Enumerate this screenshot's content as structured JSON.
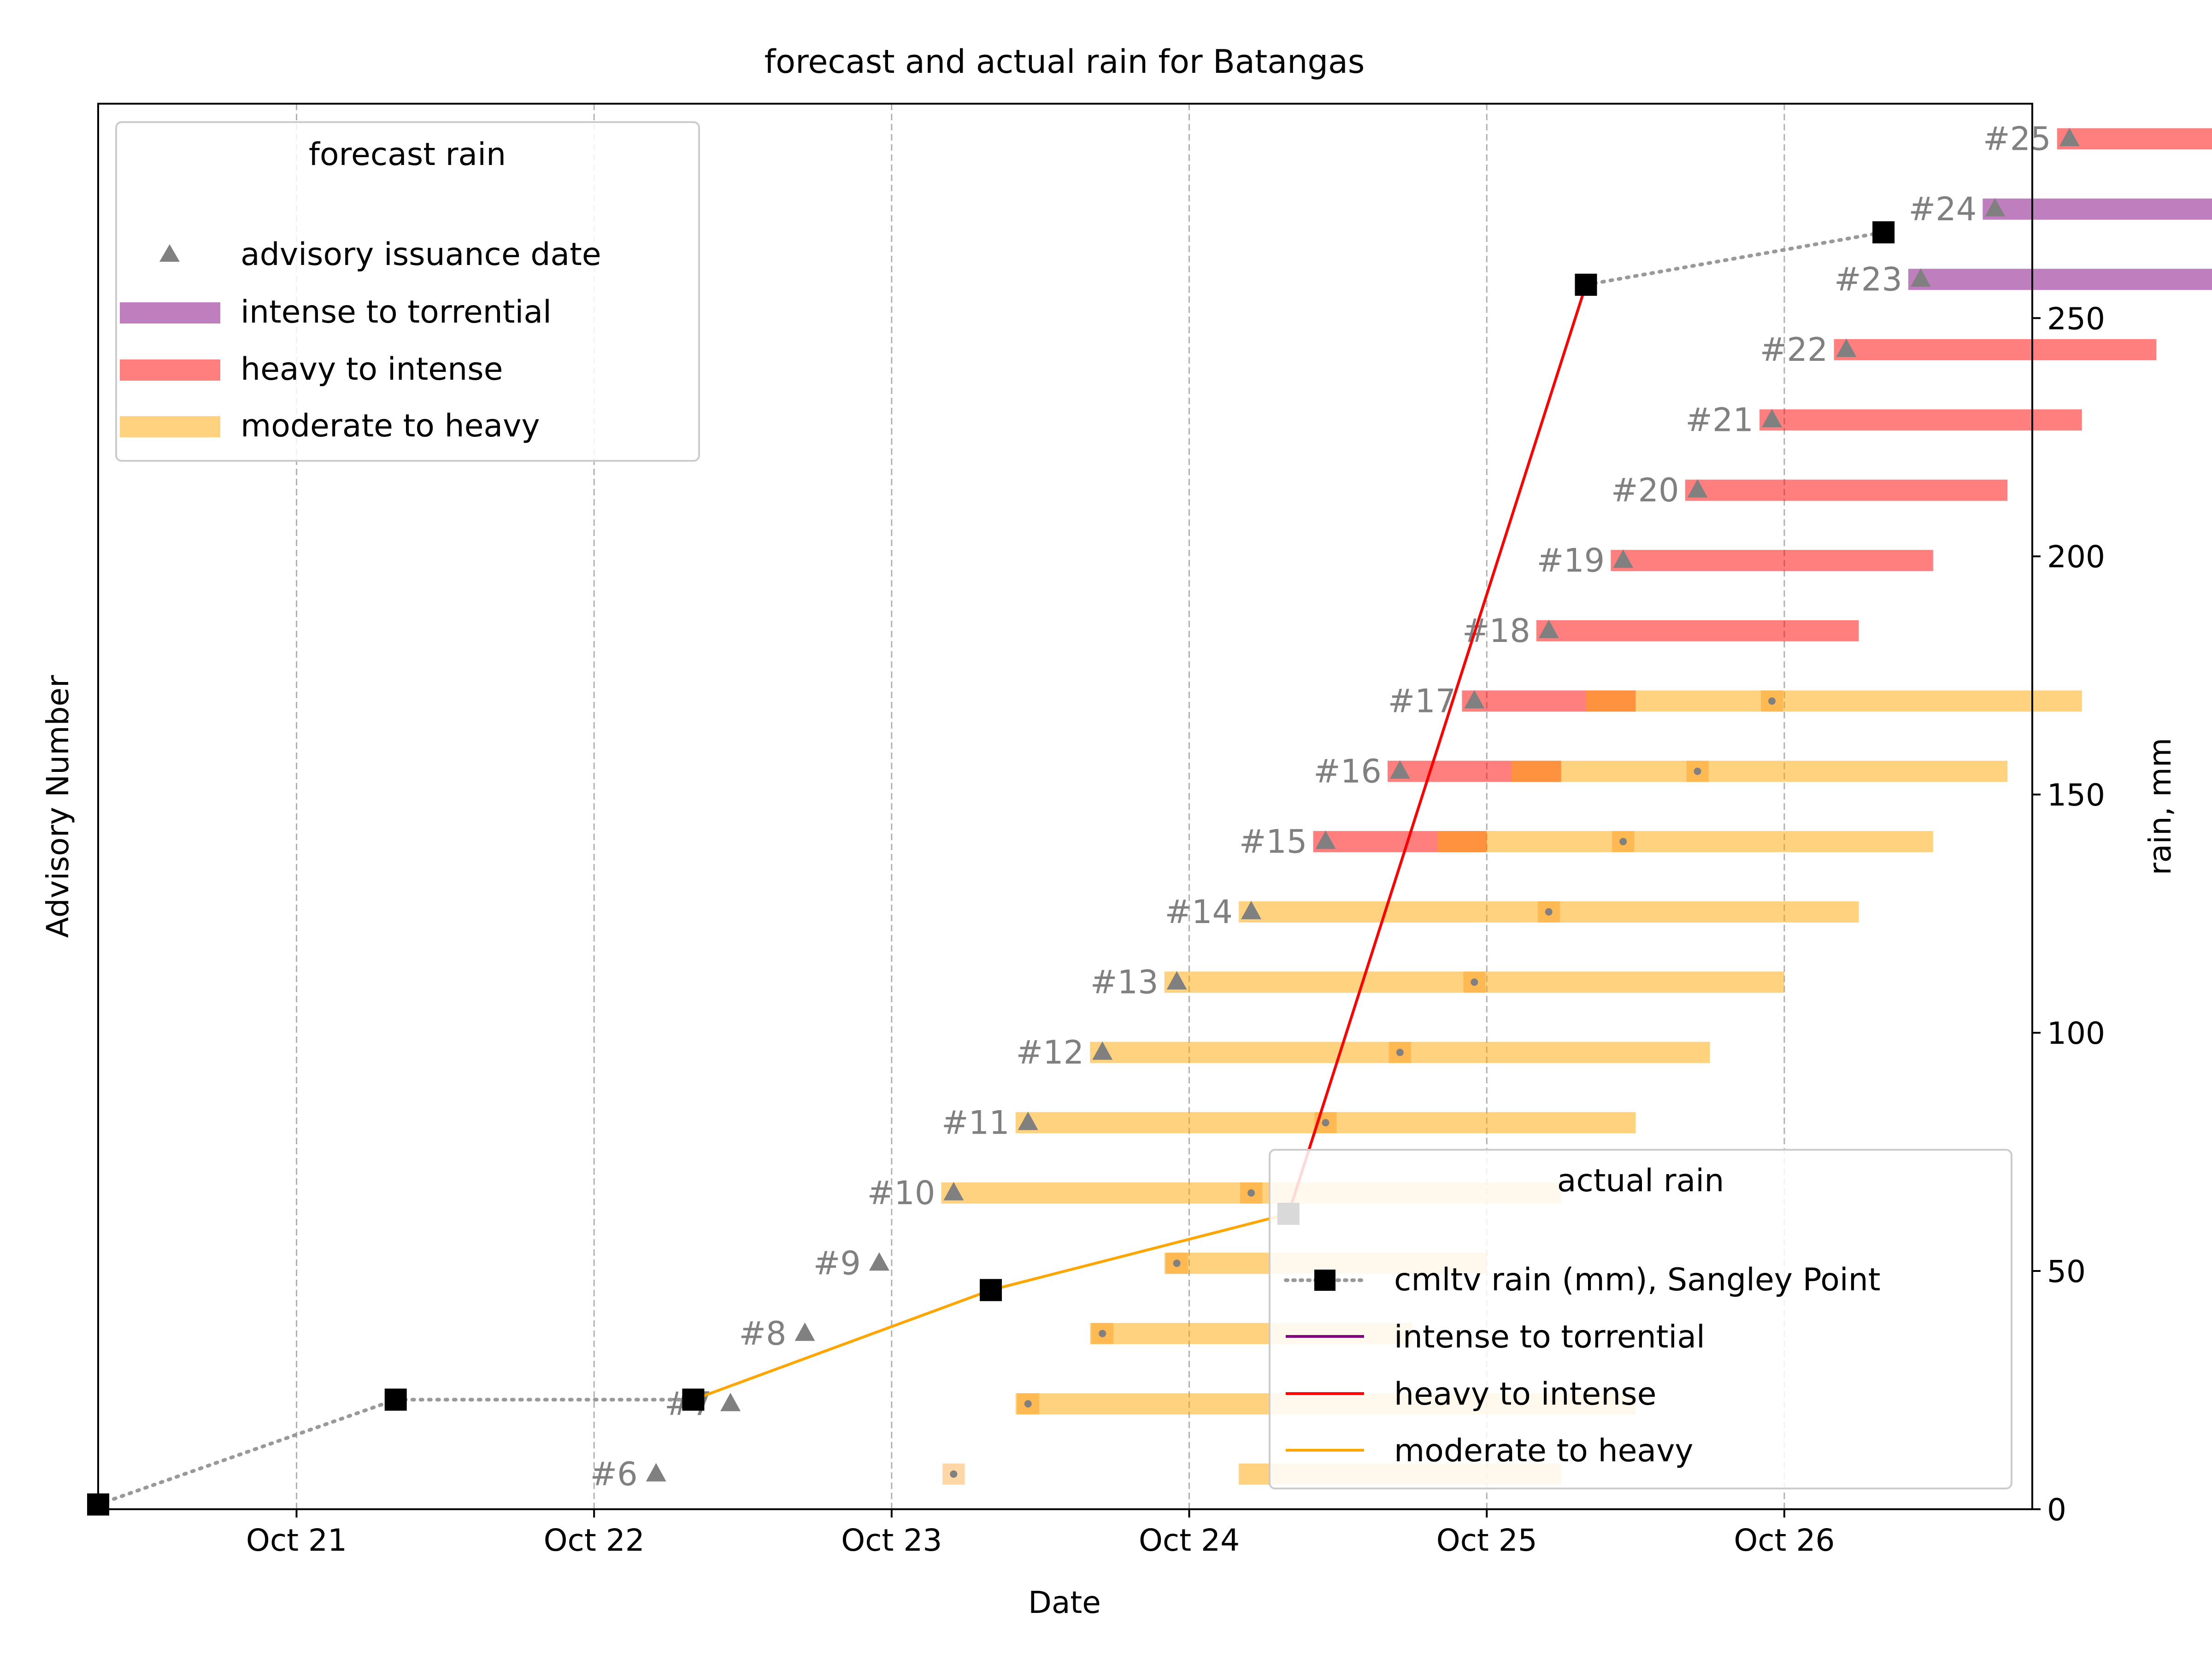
{
  "chart_data": {
    "type": "bar",
    "title": "forecast and actual rain for Batangas",
    "xlabel": "Date",
    "ylabel_left": "Advisory Number",
    "ylabel_right": "rain, mm",
    "x_date_range": [
      "2024-10-20 08:00",
      "2024-10-26 20:00"
    ],
    "x_ticks": [
      {
        "date": "2024-10-21 00:00",
        "label": "Oct 21"
      },
      {
        "date": "2024-10-22 00:00",
        "label": "Oct 22"
      },
      {
        "date": "2024-10-23 00:00",
        "label": "Oct 23"
      },
      {
        "date": "2024-10-24 00:00",
        "label": "Oct 24"
      },
      {
        "date": "2024-10-25 00:00",
        "label": "Oct 25"
      },
      {
        "date": "2024-10-26 00:00",
        "label": "Oct 26"
      }
    ],
    "y_left_range": [
      5.5,
      25.5
    ],
    "y_right_range": [
      0,
      295
    ],
    "y_right_ticks": [
      0,
      50,
      100,
      150,
      200,
      250
    ],
    "grid": "x-dashed",
    "advisories": [
      {
        "label": "#6",
        "advisory": 6,
        "issued": "2024-10-22 05:00",
        "segments": [
          {
            "start": "2024-10-24 04:00",
            "end": "2024-10-25 06:00",
            "category": "moderate to heavy"
          }
        ]
      },
      {
        "label": "#7",
        "advisory": 7,
        "issued": "2024-10-22 11:00",
        "segments": [
          {
            "start": "2024-10-23 10:00",
            "end": "2024-10-25 12:00",
            "category": "moderate to heavy"
          }
        ]
      },
      {
        "label": "#8",
        "advisory": 8,
        "issued": "2024-10-22 17:00",
        "segments": [
          {
            "start": "2024-10-23 16:00",
            "end": "2024-10-24 18:00",
            "category": "moderate to heavy"
          }
        ]
      },
      {
        "label": "#9",
        "advisory": 9,
        "issued": "2024-10-22 23:00",
        "segments": [
          {
            "start": "2024-10-23 22:00",
            "end": "2024-10-25 00:00",
            "category": "moderate to heavy"
          }
        ]
      },
      {
        "label": "#10",
        "advisory": 10,
        "issued": "2024-10-23 05:00",
        "segments": [
          {
            "start": "2024-10-23 04:00",
            "end": "2024-10-25 06:00",
            "category": "moderate to heavy"
          }
        ]
      },
      {
        "label": "#11",
        "advisory": 11,
        "issued": "2024-10-23 11:00",
        "segments": [
          {
            "start": "2024-10-23 10:00",
            "end": "2024-10-25 12:00",
            "category": "moderate to heavy"
          }
        ]
      },
      {
        "label": "#12",
        "advisory": 12,
        "issued": "2024-10-23 17:00",
        "segments": [
          {
            "start": "2024-10-23 16:00",
            "end": "2024-10-25 18:00",
            "category": "moderate to heavy"
          }
        ]
      },
      {
        "label": "#13",
        "advisory": 13,
        "issued": "2024-10-23 23:00",
        "segments": [
          {
            "start": "2024-10-23 22:00",
            "end": "2024-10-26 00:00",
            "category": "moderate to heavy"
          }
        ]
      },
      {
        "label": "#14",
        "advisory": 14,
        "issued": "2024-10-24 05:00",
        "segments": [
          {
            "start": "2024-10-24 04:00",
            "end": "2024-10-26 06:00",
            "category": "moderate to heavy"
          }
        ]
      },
      {
        "label": "#15",
        "advisory": 15,
        "issued": "2024-10-24 11:00",
        "segments": [
          {
            "start": "2024-10-24 10:00",
            "end": "2024-10-25 00:00",
            "category": "heavy to intense"
          },
          {
            "start": "2024-10-24 20:00",
            "end": "2024-10-26 12:00",
            "category": "moderate to heavy"
          }
        ]
      },
      {
        "label": "#16",
        "advisory": 16,
        "issued": "2024-10-24 17:00",
        "segments": [
          {
            "start": "2024-10-24 16:00",
            "end": "2024-10-25 06:00",
            "category": "heavy to intense"
          },
          {
            "start": "2024-10-25 02:00",
            "end": "2024-10-26 18:00",
            "category": "moderate to heavy"
          }
        ]
      },
      {
        "label": "#17",
        "advisory": 17,
        "issued": "2024-10-24 23:00",
        "segments": [
          {
            "start": "2024-10-24 22:00",
            "end": "2024-10-25 12:00",
            "category": "heavy to intense"
          },
          {
            "start": "2024-10-25 08:00",
            "end": "2024-10-27 00:00",
            "category": "moderate to heavy"
          }
        ]
      },
      {
        "label": "#18",
        "advisory": 18,
        "issued": "2024-10-25 05:00",
        "segments": [
          {
            "start": "2024-10-25 04:00",
            "end": "2024-10-26 06:00",
            "category": "heavy to intense"
          }
        ]
      },
      {
        "label": "#19",
        "advisory": 19,
        "issued": "2024-10-25 11:00",
        "segments": [
          {
            "start": "2024-10-25 10:00",
            "end": "2024-10-26 12:00",
            "category": "heavy to intense"
          }
        ]
      },
      {
        "label": "#20",
        "advisory": 20,
        "issued": "2024-10-25 17:00",
        "segments": [
          {
            "start": "2024-10-25 16:00",
            "end": "2024-10-26 18:00",
            "category": "heavy to intense"
          }
        ]
      },
      {
        "label": "#21",
        "advisory": 21,
        "issued": "2024-10-25 23:00",
        "segments": [
          {
            "start": "2024-10-25 22:00",
            "end": "2024-10-27 00:00",
            "category": "heavy to intense"
          }
        ]
      },
      {
        "label": "#22",
        "advisory": 22,
        "issued": "2024-10-26 05:00",
        "segments": [
          {
            "start": "2024-10-26 04:00",
            "end": "2024-10-27 06:00",
            "category": "heavy to intense"
          }
        ]
      },
      {
        "label": "#23",
        "advisory": 23,
        "issued": "2024-10-26 11:00",
        "segments": [
          {
            "start": "2024-10-26 10:00",
            "end": "2024-10-27 12:00",
            "category": "intense to torrential"
          }
        ]
      },
      {
        "label": "#24",
        "advisory": 24,
        "issued": "2024-10-26 17:00",
        "segments": [
          {
            "start": "2024-10-26 16:00",
            "end": "2024-10-27 18:00",
            "category": "intense to torrential"
          }
        ]
      },
      {
        "label": "#25",
        "advisory": 25,
        "issued": "2024-10-26 23:00",
        "segments": [
          {
            "start": "2024-10-26 22:00",
            "end": "2024-10-28 00:00",
            "category": "heavy to intense"
          }
        ]
      }
    ],
    "actual_rain": {
      "name": "cmltv rain (mm), Sangley Point",
      "points": [
        {
          "date": "2024-10-20 08:00",
          "rain": 1
        },
        {
          "date": "2024-10-21 08:00",
          "rain": 23
        },
        {
          "date": "2024-10-22 08:00",
          "rain": 23
        },
        {
          "date": "2024-10-23 08:00",
          "rain": 46
        },
        {
          "date": "2024-10-24 08:00",
          "rain": 62
        },
        {
          "date": "2024-10-25 08:00",
          "rain": 257
        },
        {
          "date": "2024-10-26 08:00",
          "rain": 268
        }
      ],
      "segment_categories": [
        "none",
        "none",
        "moderate to heavy",
        "moderate to heavy",
        "heavy to intense",
        "none"
      ]
    },
    "legend_forecast": {
      "title": "forecast rain",
      "placement": "top-left",
      "entries": [
        "advisory issuance date",
        "intense to torrential",
        "heavy to intense",
        "moderate to heavy"
      ]
    },
    "legend_actual": {
      "title": "actual rain",
      "placement": "lower-right",
      "entries": [
        "cmltv rain (mm), Sangley Point",
        "intense to torrential",
        "heavy to intense",
        "moderate to heavy"
      ]
    },
    "colors": {
      "moderate to heavy": "#ffa500",
      "heavy to intense": "#ff0000",
      "intense to torrential": "#800080",
      "marker": "#808080",
      "rain_line": "#999999",
      "rain_marker": "#000000",
      "grid": "#b0b0b0"
    }
  }
}
